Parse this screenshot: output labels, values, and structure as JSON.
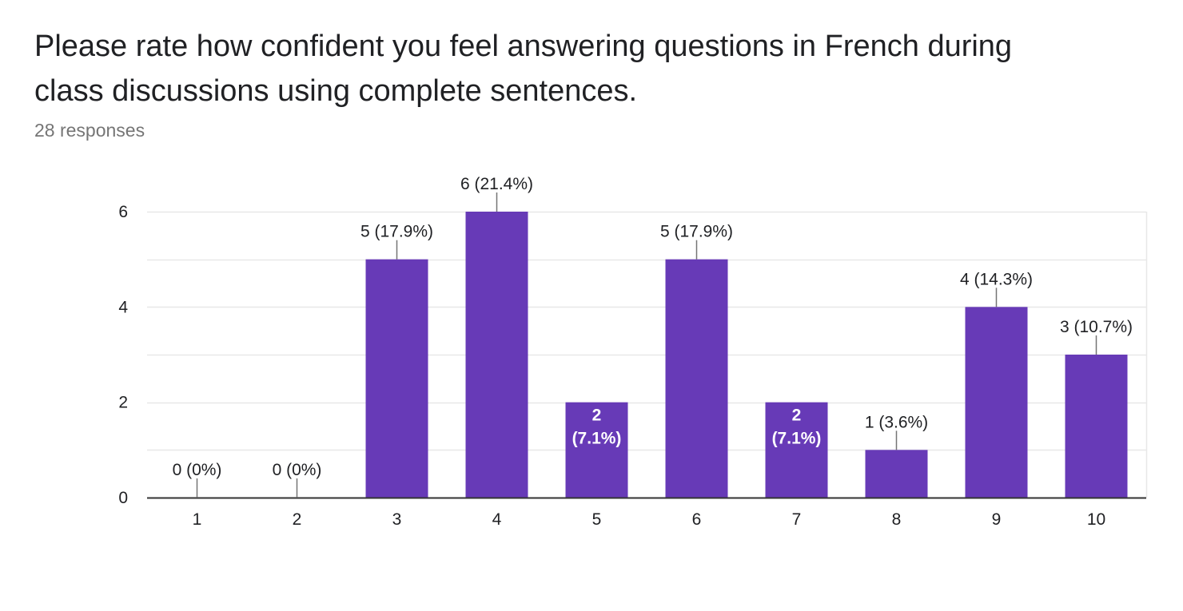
{
  "question": {
    "title": "Please rate how confident you feel answering questions in French during class discussions using complete sentences.",
    "responses": "28 responses"
  },
  "colors": {
    "bar": "#673ab7",
    "grid": "#e8e8e8",
    "axis": "#333333",
    "leader": "#757575"
  },
  "chart_data": {
    "type": "bar",
    "categories": [
      "1",
      "2",
      "3",
      "4",
      "5",
      "6",
      "7",
      "8",
      "9",
      "10"
    ],
    "values": [
      0,
      0,
      5,
      6,
      2,
      5,
      2,
      1,
      4,
      3
    ],
    "labels": [
      "0 (0%)",
      "0 (0%)",
      "5 (17.9%)",
      "6 (21.4%)",
      "2 (7.1%)",
      "5 (17.9%)",
      "2 (7.1%)",
      "1 (3.6%)",
      "4 (14.3%)",
      "3 (10.7%)"
    ],
    "label_placement": [
      "above",
      "above",
      "above",
      "above",
      "inside",
      "above",
      "inside",
      "above",
      "above",
      "above"
    ],
    "yticks": [
      0,
      2,
      4,
      6
    ],
    "ylim": [
      0,
      6
    ],
    "gridlines": [
      1,
      2,
      3,
      4,
      5,
      6
    ],
    "grid": true,
    "legend": "none"
  }
}
